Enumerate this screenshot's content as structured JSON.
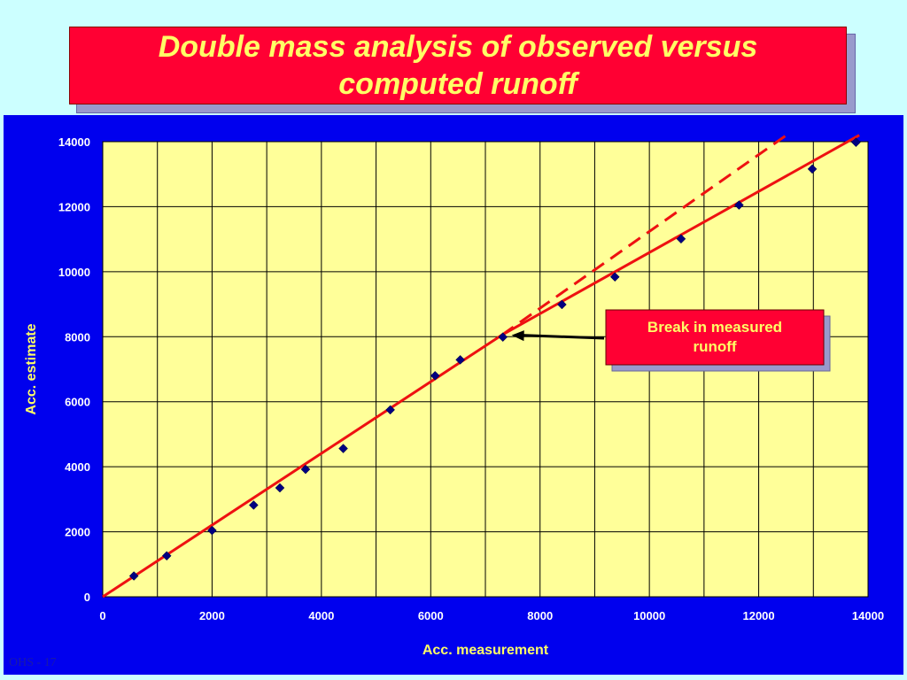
{
  "slide": {
    "title": "Double mass analysis of observed versus computed runoff",
    "footer": "OHS - 17"
  },
  "colors": {
    "background": "#ccffff",
    "title_box": "#ff0033",
    "title_text": "#ffff66",
    "chart_panel": "#0000ee",
    "plot_area": "#ffff99",
    "fit_line": "#ee1111",
    "marker": "#000080",
    "axis_label": "#ffff66",
    "tick_label": "#ffffff"
  },
  "chart_data": {
    "type": "scatter",
    "title": "",
    "xlabel": "Acc. measurement",
    "ylabel": "Acc. estimate",
    "xlim": [
      0,
      14000
    ],
    "ylim": [
      0,
      14000
    ],
    "xticks": [
      0,
      2000,
      4000,
      6000,
      8000,
      10000,
      12000,
      14000
    ],
    "yticks": [
      0,
      2000,
      4000,
      6000,
      8000,
      10000,
      12000,
      14000
    ],
    "grid": true,
    "series": [
      {
        "marker": "diamond",
        "points": [
          [
            570,
            640
          ],
          [
            1170,
            1260
          ],
          [
            2000,
            2040
          ],
          [
            2760,
            2820
          ],
          [
            3240,
            3350
          ],
          [
            3710,
            3920
          ],
          [
            4400,
            4560
          ],
          [
            5260,
            5750
          ],
          [
            6080,
            6800
          ],
          [
            6540,
            7290
          ],
          [
            7320,
            7990
          ],
          [
            8400,
            8990
          ],
          [
            9370,
            9840
          ],
          [
            10580,
            11010
          ],
          [
            11640,
            12050
          ],
          [
            12980,
            13160
          ],
          [
            13780,
            13980
          ]
        ]
      }
    ],
    "lines": [
      {
        "style": "solid",
        "points": [
          [
            0,
            0
          ],
          [
            7300,
            8050
          ],
          [
            13840,
            14200
          ]
        ]
      },
      {
        "style": "dashed",
        "points": [
          [
            7300,
            8050
          ],
          [
            12550,
            14250
          ]
        ]
      }
    ],
    "annotation": {
      "text_line1": "Break in measured",
      "text_line2": "runoff",
      "arrow_to": [
        7350,
        8100
      ]
    }
  }
}
